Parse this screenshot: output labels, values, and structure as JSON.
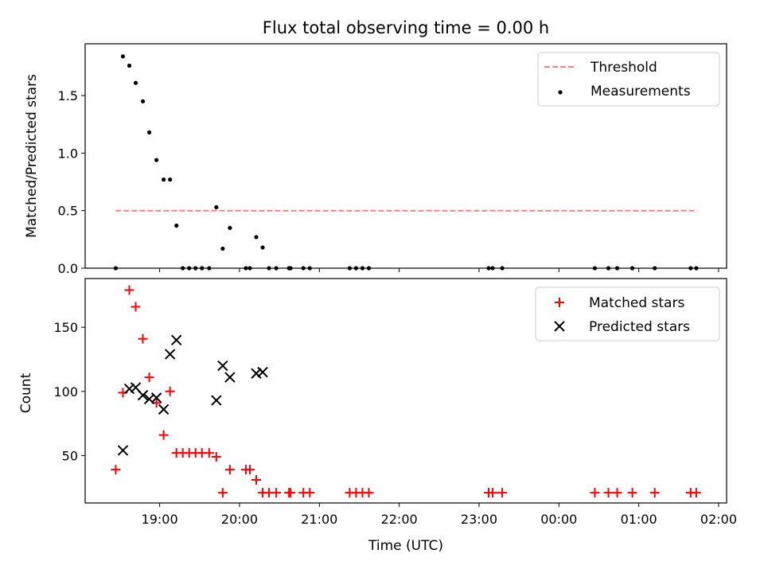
{
  "title": "Flux total observing time = 0.00 h",
  "xlabel": "Time (UTC)",
  "colors": {
    "threshold": "#ff8080",
    "measurement": "#000000",
    "matched": "#ff0000",
    "predicted": "#000000"
  },
  "chart_data": [
    {
      "type": "scatter",
      "panel": "top",
      "ylabel": "Matched/Predicted stars",
      "xlim": [
        18.067,
        26.1
      ],
      "ylim": [
        0,
        1.95
      ],
      "yticks": [
        0.0,
        0.5,
        1.0,
        1.5
      ],
      "ytick_labels": [
        "0.0",
        "0.5",
        "1.0",
        "1.5"
      ],
      "legend": [
        "Threshold",
        "Measurements"
      ],
      "legend_position": "top-right",
      "threshold": {
        "name": "Threshold",
        "x": [
          18.45,
          25.73
        ],
        "y": 0.5,
        "style": "dashed"
      },
      "series": [
        {
          "name": "Measurements",
          "x": [
            18.45,
            18.54,
            18.62,
            18.7,
            18.79,
            18.87,
            18.96,
            19.05,
            19.13,
            19.21,
            19.29,
            19.37,
            19.45,
            19.53,
            19.62,
            19.71,
            19.79,
            19.88,
            20.08,
            20.13,
            20.21,
            20.29,
            20.37,
            20.46,
            20.62,
            20.64,
            20.8,
            20.88,
            21.38,
            21.46,
            21.54,
            21.62,
            23.12,
            23.17,
            23.29,
            24.45,
            24.62,
            24.73,
            24.92,
            25.2,
            25.65,
            25.72
          ],
          "values": [
            0.0,
            1.84,
            1.76,
            1.61,
            1.45,
            1.18,
            0.94,
            0.77,
            0.77,
            0.37,
            0.0,
            0.0,
            0.0,
            0.0,
            0.0,
            0.53,
            0.17,
            0.35,
            0.0,
            0.0,
            0.27,
            0.18,
            0.0,
            0.0,
            0.0,
            0.0,
            0.0,
            0.0,
            0.0,
            0.0,
            0.0,
            0.0,
            0.0,
            0.0,
            0.0,
            0.0,
            0.0,
            0.0,
            0.0,
            0.0,
            0.0,
            0.0
          ]
        }
      ]
    },
    {
      "type": "scatter",
      "panel": "bottom",
      "ylabel": "Count",
      "xlim": [
        18.067,
        26.1
      ],
      "ylim": [
        13,
        188
      ],
      "yticks": [
        50,
        100,
        150
      ],
      "ytick_labels": [
        "50",
        "100",
        "150"
      ],
      "xticks": [
        19,
        20,
        21,
        22,
        23,
        24,
        25,
        26
      ],
      "xtick_labels": [
        "19:00",
        "20:00",
        "21:00",
        "22:00",
        "23:00",
        "00:00",
        "01:00",
        "02:00"
      ],
      "legend": [
        "Matched stars",
        "Predicted stars"
      ],
      "legend_position": "top-right",
      "series": [
        {
          "name": "Matched stars",
          "marker": "plus",
          "x": [
            18.45,
            18.54,
            18.62,
            18.7,
            18.79,
            18.87,
            18.96,
            19.05,
            19.13,
            19.21,
            19.29,
            19.37,
            19.45,
            19.53,
            19.62,
            19.71,
            19.79,
            19.88,
            20.08,
            20.13,
            20.21,
            20.29,
            20.37,
            20.46,
            20.62,
            20.64,
            20.8,
            20.88,
            21.38,
            21.46,
            21.54,
            21.62,
            23.12,
            23.17,
            23.29,
            24.45,
            24.62,
            24.73,
            24.92,
            25.2,
            25.65,
            25.72
          ],
          "values": [
            39,
            99,
            179,
            166,
            141,
            111,
            91,
            66,
            100,
            52,
            52,
            52,
            52,
            52,
            52,
            49,
            21,
            39,
            39,
            39,
            31,
            21,
            21,
            21,
            21,
            21,
            21,
            21,
            21,
            21,
            21,
            21,
            21,
            21,
            21,
            21,
            21,
            21,
            21,
            21,
            21,
            21
          ]
        },
        {
          "name": "Predicted stars",
          "marker": "x",
          "x": [
            18.54,
            18.62,
            18.7,
            18.79,
            18.87,
            18.96,
            19.05,
            19.13,
            19.21,
            19.71,
            19.79,
            19.88,
            20.21,
            20.29
          ],
          "values": [
            54,
            102,
            103,
            97,
            94,
            95,
            86,
            129,
            140,
            93,
            120,
            111,
            114,
            115
          ]
        }
      ]
    }
  ]
}
